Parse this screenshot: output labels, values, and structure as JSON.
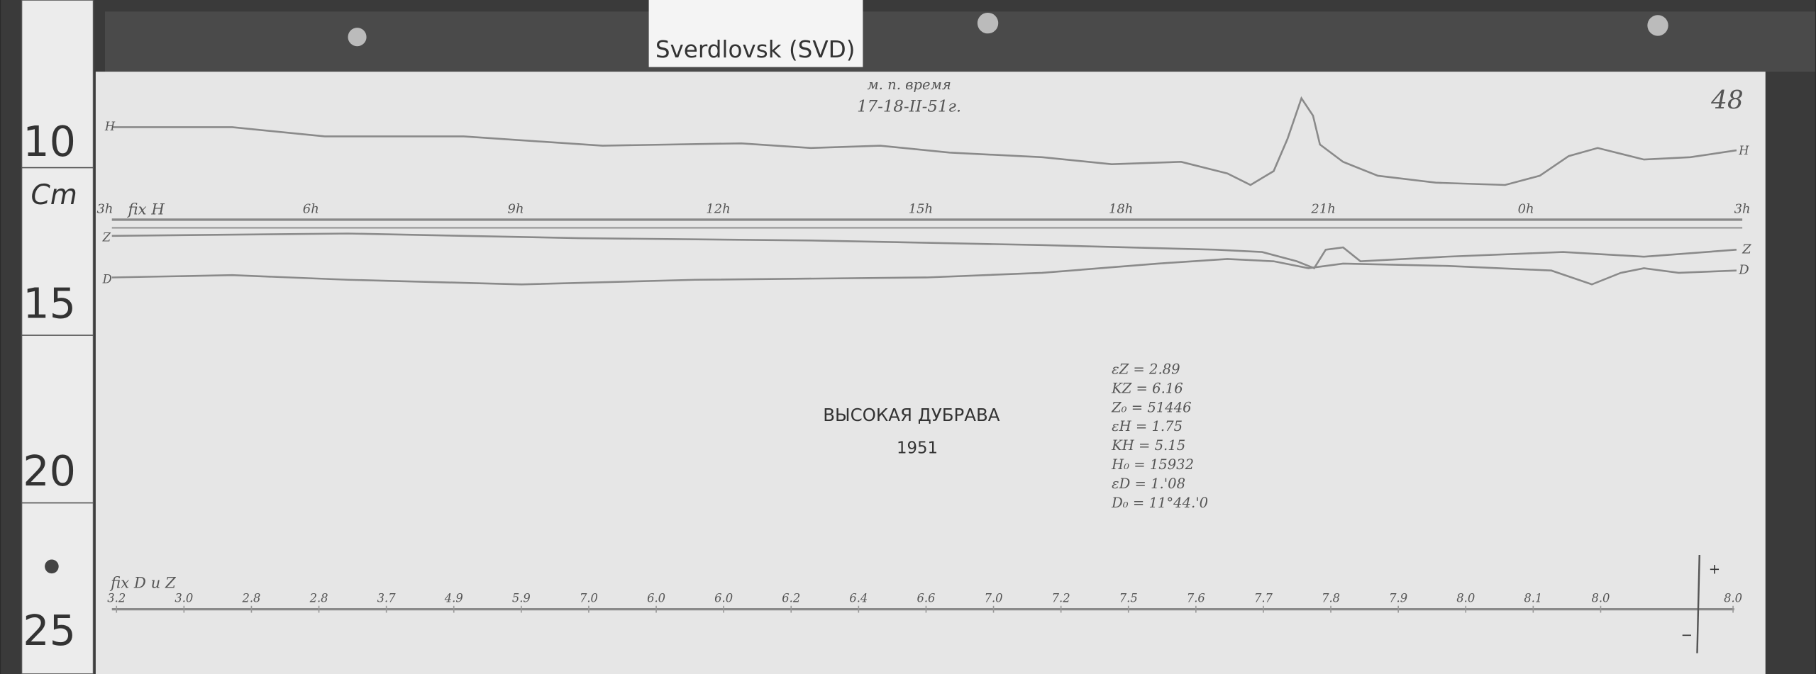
{
  "station_label": "Sverdlovsk (SVD)",
  "ruler": {
    "labels": [
      "10",
      "Cm",
      "15",
      "20",
      "25"
    ]
  },
  "sheet": {
    "header_note": "м. п. время",
    "date": "17-18-II-51г.",
    "sheet_number": "48",
    "h_fix_label": "fix H",
    "hour_labels": [
      "3h",
      "6h",
      "9h",
      "12h",
      "15h",
      "18h",
      "21h",
      "0h",
      "3h"
    ],
    "trace_labels": {
      "h_left": "H",
      "h_right": "H",
      "z_left": "Z",
      "z_right": "Z",
      "d_left": "D",
      "d_right": "D"
    },
    "observatory": "ВЫСОКАЯ ДУБРАВА",
    "year": "1951",
    "parameters": [
      "εZ = 2.89",
      "KZ = 6.16",
      "Z₀ = 51446",
      "εH = 1.75",
      "KH = 5.15",
      "H₀ = 15932",
      "εD = 1.'08",
      "D₀ = 11°44.'0"
    ],
    "dz_fix_label": "fix D и Z",
    "temperatures": [
      "3.2",
      "3.0",
      "2.8",
      "2.8",
      "3.7",
      "4.9",
      "5.9",
      "7.0",
      "6.0",
      "6.0",
      "6.2",
      "6.4",
      "6.6",
      "7.0",
      "7.2",
      "7.5",
      "7.6",
      "7.7",
      "7.8",
      "7.9",
      "8.0",
      "8.1",
      "8.0",
      "8.0"
    ],
    "scale_plus": "+",
    "scale_minus": "−"
  }
}
